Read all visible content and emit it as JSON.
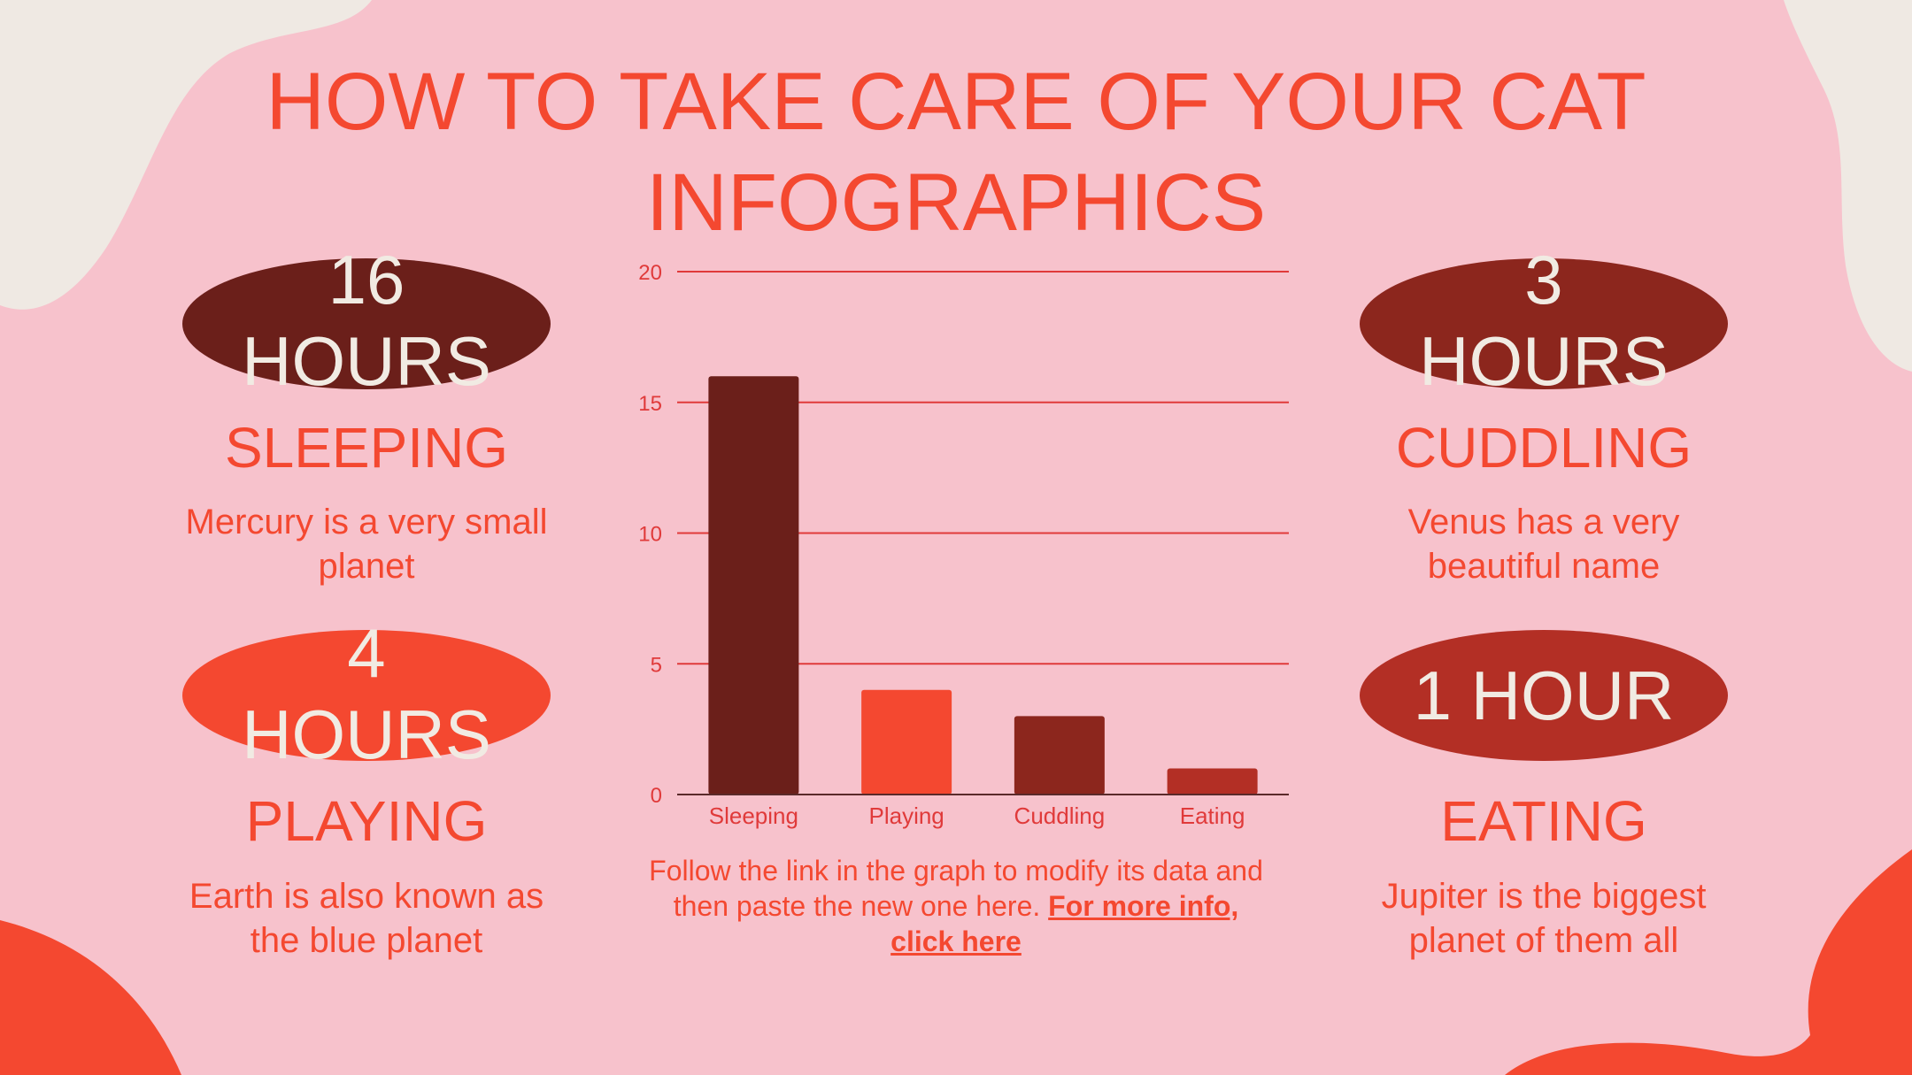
{
  "title": {
    "line1": "HOW TO TAKE CARE OF YOUR CAT",
    "line2": "INFOGRAPHICS"
  },
  "stats": [
    {
      "value_line1": "16",
      "value_line2": "HOURS",
      "label": "SLEEPING",
      "desc_line1": "Mercury is a very small",
      "desc_line2": "planet",
      "color": "#6b1f1a"
    },
    {
      "value_line1": "4",
      "value_line2": "HOURS",
      "label": "PLAYING",
      "desc_line1": "Earth is also known as",
      "desc_line2": "the blue planet",
      "color": "#f44830"
    },
    {
      "value_line1": "3",
      "value_line2": "HOURS",
      "label": "CUDDLING",
      "desc_line1": "Venus has a very",
      "desc_line2": "beautiful name",
      "color": "#8c261d"
    },
    {
      "value_line1": "1 HOUR",
      "label": "EATING",
      "desc_line1": "Jupiter is the biggest",
      "desc_line2": "planet of them all",
      "color": "#b32f25"
    }
  ],
  "chart_data": {
    "type": "bar",
    "categories": [
      "Sleeping",
      "Playing",
      "Cuddling",
      "Eating"
    ],
    "values": [
      16,
      4,
      3,
      1
    ],
    "colors": [
      "#6b1f1a",
      "#f44830",
      "#8c261d",
      "#b32f25"
    ],
    "ylim": [
      0,
      20
    ],
    "yticks": [
      0,
      5,
      10,
      15,
      20
    ],
    "grid": true,
    "gridline_color": "#e03a3a",
    "xlabel": "",
    "ylabel": ""
  },
  "footnote": {
    "line1": "Follow the link in the graph to modify its data and",
    "line2_text": "then paste the new one here. ",
    "line2_link": "For more info,",
    "line3_link": "click here"
  },
  "colors": {
    "background": "#f7c2cc",
    "accent": "#f44830",
    "cream": "#efe9e3",
    "badge_text": "#f1ebe3"
  }
}
